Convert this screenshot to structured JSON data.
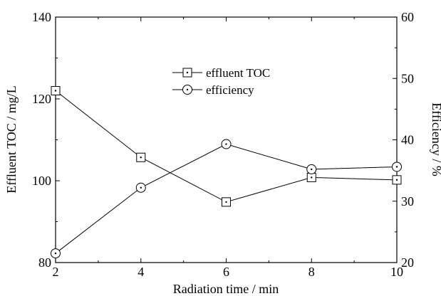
{
  "chart_data": {
    "type": "line",
    "x": [
      2,
      4,
      6,
      8,
      10
    ],
    "xlabel": "Radiation time / min",
    "ylabel_left": "Effluent TOC / mg/L",
    "ylabel_right": "Efficiency / %",
    "xlim": [
      2,
      10
    ],
    "ylim_left": [
      80,
      140
    ],
    "ylim_right": [
      20,
      60
    ],
    "x_ticks": [
      2,
      4,
      6,
      8,
      10
    ],
    "y_ticks_left": [
      80,
      100,
      120,
      140
    ],
    "y_ticks_right": [
      20,
      30,
      40,
      50,
      60
    ],
    "grid": false,
    "legend_position": "upper-center",
    "series": [
      {
        "name": "effluent TOC",
        "axis": "left",
        "marker": "square",
        "values": [
          122,
          105.7,
          94.8,
          100.8,
          100.2
        ]
      },
      {
        "name": "efficiency",
        "axis": "right",
        "marker": "circle",
        "values": [
          21.5,
          32.2,
          39.3,
          35.2,
          35.6
        ]
      }
    ]
  }
}
